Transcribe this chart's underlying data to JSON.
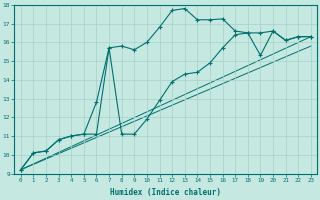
{
  "xlabel": "Humidex (Indice chaleur)",
  "bg_color": "#c5e8e0",
  "grid_color": "#a8cfc8",
  "line_color": "#007070",
  "xlim": [
    -0.5,
    23.5
  ],
  "ylim": [
    9,
    18
  ],
  "xticks": [
    0,
    1,
    2,
    3,
    4,
    5,
    6,
    7,
    8,
    9,
    10,
    11,
    12,
    13,
    14,
    15,
    16,
    17,
    18,
    19,
    20,
    21,
    22,
    23
  ],
  "yticks": [
    9,
    10,
    11,
    12,
    13,
    14,
    15,
    16,
    17,
    18
  ],
  "curve1_x": [
    0,
    1,
    2,
    3,
    4,
    5,
    6,
    7,
    8,
    9,
    10,
    11,
    12,
    13,
    14,
    15,
    16,
    17,
    18,
    19,
    20,
    21,
    22,
    23
  ],
  "curve1_y": [
    9.2,
    10.1,
    10.2,
    10.8,
    11.0,
    11.1,
    11.1,
    15.7,
    15.8,
    15.6,
    16.0,
    16.8,
    17.7,
    17.8,
    17.2,
    17.2,
    17.25,
    16.6,
    16.5,
    16.5,
    16.6,
    16.1,
    16.3,
    16.3
  ],
  "curve2_x": [
    0,
    1,
    2,
    3,
    4,
    5,
    6,
    7,
    8,
    9,
    10,
    11,
    12,
    13,
    14,
    15,
    16,
    17,
    18,
    19,
    20,
    21,
    22,
    23
  ],
  "curve2_y": [
    9.2,
    10.1,
    10.2,
    10.8,
    11.0,
    11.1,
    12.8,
    15.7,
    11.1,
    11.1,
    11.9,
    12.9,
    13.9,
    14.3,
    14.4,
    14.9,
    15.7,
    16.4,
    16.5,
    15.3,
    16.6,
    16.1,
    16.3,
    16.3
  ],
  "line1_x": [
    0,
    23
  ],
  "line1_y": [
    9.2,
    16.3
  ],
  "line2_x": [
    0,
    23
  ],
  "line2_y": [
    9.2,
    15.8
  ]
}
